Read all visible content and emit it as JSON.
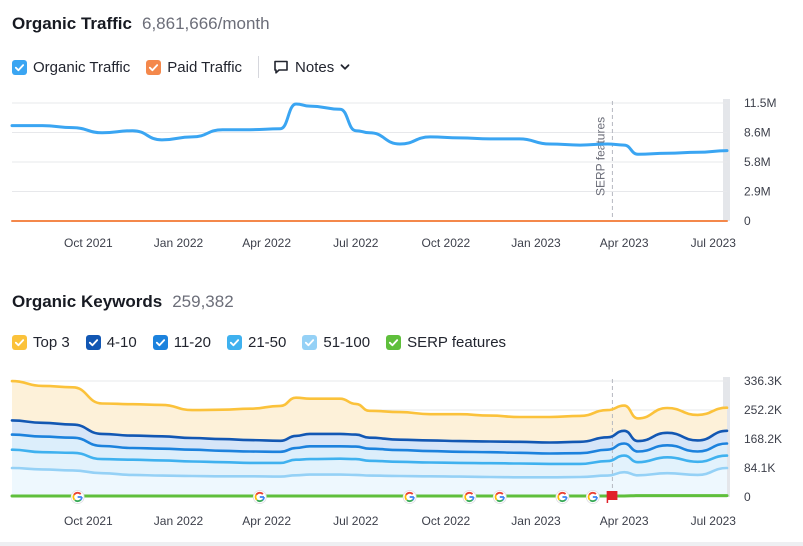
{
  "traffic": {
    "title": "Organic Traffic",
    "value": "6,861,666/month",
    "legend": [
      {
        "label": "Organic Traffic",
        "color": "#3aa5f2"
      },
      {
        "label": "Paid Traffic",
        "color": "#f4884b"
      }
    ],
    "notes_label": "Notes"
  },
  "keywords": {
    "title": "Organic Keywords",
    "value": "259,382",
    "legend": [
      {
        "label": "Top 3",
        "color": "#fbc23b"
      },
      {
        "label": "4-10",
        "color": "#1257b3"
      },
      {
        "label": "11-20",
        "color": "#1c82dd"
      },
      {
        "label": "21-50",
        "color": "#3fb1ef"
      },
      {
        "label": "51-100",
        "color": "#95d1f6"
      },
      {
        "label": "SERP features",
        "color": "#5fbf3c"
      }
    ]
  },
  "chart_data": [
    {
      "type": "line",
      "x": [
        "2021-07-15",
        "2021-08-15",
        "2021-09-15",
        "2021-10-15",
        "2021-11-15",
        "2021-12-15",
        "2022-01-15",
        "2022-02-15",
        "2022-03-15",
        "2022-04-15",
        "2022-05-01",
        "2022-05-15",
        "2022-06-15",
        "2022-07-01",
        "2022-07-15",
        "2022-08-15",
        "2022-09-15",
        "2022-10-15",
        "2022-11-15",
        "2022-12-15",
        "2023-01-15",
        "2023-02-15",
        "2023-03-15",
        "2023-04-01",
        "2023-04-15",
        "2023-05-15",
        "2023-06-15",
        "2023-07-15"
      ],
      "series": [
        {
          "name": "Organic Traffic",
          "color": "#3aa5f2",
          "values": [
            9.3,
            9.3,
            9.1,
            8.6,
            8.8,
            7.9,
            8.2,
            8.9,
            8.9,
            9.0,
            11.4,
            11.2,
            10.9,
            8.8,
            8.6,
            7.5,
            8.2,
            8.1,
            8.0,
            8.0,
            7.5,
            7.4,
            7.5,
            7.4,
            6.5,
            6.6,
            6.7,
            6.86
          ]
        },
        {
          "name": "Paid Traffic",
          "color": "#f4884b",
          "values": [
            0,
            0,
            0,
            0,
            0,
            0,
            0,
            0,
            0,
            0,
            0,
            0,
            0,
            0,
            0,
            0,
            0,
            0,
            0,
            0,
            0,
            0,
            0,
            0,
            0,
            0,
            0,
            0
          ]
        }
      ],
      "yticks": [
        "11.5M",
        "8.6M",
        "5.8M",
        "2.9M",
        "0"
      ],
      "ylim": [
        0,
        11.5
      ],
      "xticks": [
        "Oct 2021",
        "Jan 2022",
        "Apr 2022",
        "Jul 2022",
        "Oct 2022",
        "Jan 2023",
        "Apr 2023",
        "Jul 2023"
      ],
      "annotations": [
        {
          "label": "SERP features",
          "x": "2023-03-20"
        }
      ],
      "grid": true
    },
    {
      "type": "area",
      "x": [
        "2021-07-15",
        "2021-08-15",
        "2021-09-15",
        "2021-10-15",
        "2021-11-15",
        "2021-12-15",
        "2022-01-15",
        "2022-02-15",
        "2022-03-15",
        "2022-04-15",
        "2022-05-01",
        "2022-05-15",
        "2022-06-15",
        "2022-07-01",
        "2022-07-15",
        "2022-08-15",
        "2022-09-15",
        "2022-10-15",
        "2022-11-15",
        "2022-12-15",
        "2023-01-15",
        "2023-02-15",
        "2023-03-15",
        "2023-04-01",
        "2023-04-15",
        "2023-05-15",
        "2023-06-15",
        "2023-07-15"
      ],
      "series": [
        {
          "name": "Top 3",
          "color": "#fbc23b",
          "values": [
            336,
            322,
            318,
            271,
            269,
            267,
            252,
            253,
            256,
            264,
            288,
            285,
            285,
            270,
            250,
            246,
            240,
            240,
            236,
            232,
            232,
            235,
            252,
            265,
            228,
            258,
            238,
            259
          ]
        },
        {
          "name": "4-10",
          "color": "#1257b3",
          "values": [
            222,
            215,
            210,
            183,
            178,
            176,
            171,
            168,
            165,
            163,
            177,
            183,
            183,
            181,
            172,
            166,
            164,
            162,
            161,
            160,
            158,
            160,
            173,
            192,
            162,
            186,
            164,
            192
          ]
        },
        {
          "name": "11-20",
          "color": "#1c82dd",
          "values": [
            181,
            175,
            172,
            148,
            142,
            140,
            137,
            134,
            132,
            131,
            142,
            147,
            147,
            146,
            140,
            136,
            133,
            131,
            130,
            128,
            126,
            127,
            137,
            155,
            132,
            150,
            132,
            155
          ]
        },
        {
          "name": "21-50",
          "color": "#3fb1ef",
          "values": [
            137,
            130,
            128,
            110,
            108,
            106,
            103,
            101,
            99,
            99,
            108,
            110,
            111,
            110,
            105,
            102,
            100,
            99,
            98,
            97,
            96,
            96,
            104,
            120,
            101,
            115,
            102,
            120
          ]
        },
        {
          "name": "51-100",
          "color": "#95d1f6",
          "values": [
            84,
            80,
            77,
            69,
            64,
            62,
            61,
            60,
            60,
            59,
            63,
            65,
            65,
            64,
            62,
            61,
            60,
            59,
            58,
            57,
            57,
            58,
            62,
            72,
            63,
            69,
            64,
            84
          ]
        },
        {
          "name": "SERP features",
          "color": "#5fbf3c",
          "values": [
            3,
            3,
            3,
            3,
            3,
            3,
            3,
            3,
            3,
            3,
            3,
            3,
            3,
            3,
            3,
            3,
            3,
            3,
            3,
            3,
            3,
            3,
            3,
            3,
            4,
            4,
            4,
            4
          ]
        }
      ],
      "yticks": [
        "336.3K",
        "252.2K",
        "168.2K",
        "84.1K",
        "0"
      ],
      "ylim": [
        0,
        336.3
      ],
      "xticks": [
        "Oct 2021",
        "Jan 2022",
        "Apr 2022",
        "Jul 2022",
        "Oct 2022",
        "Jan 2023",
        "Apr 2023",
        "Jul 2023"
      ],
      "markers": [
        {
          "type": "google-icon",
          "x": "2021-09-20"
        },
        {
          "type": "google-icon",
          "x": "2022-03-25"
        },
        {
          "type": "google-icon",
          "x": "2022-08-25"
        },
        {
          "type": "google-icon",
          "x": "2022-10-25"
        },
        {
          "type": "google-icon",
          "x": "2022-11-25"
        },
        {
          "type": "google-icon",
          "x": "2023-01-28"
        },
        {
          "type": "google-icon",
          "x": "2023-02-28"
        },
        {
          "type": "flag-icon",
          "x": "2023-03-20",
          "color": "#e1222a"
        }
      ],
      "grid": true
    }
  ]
}
